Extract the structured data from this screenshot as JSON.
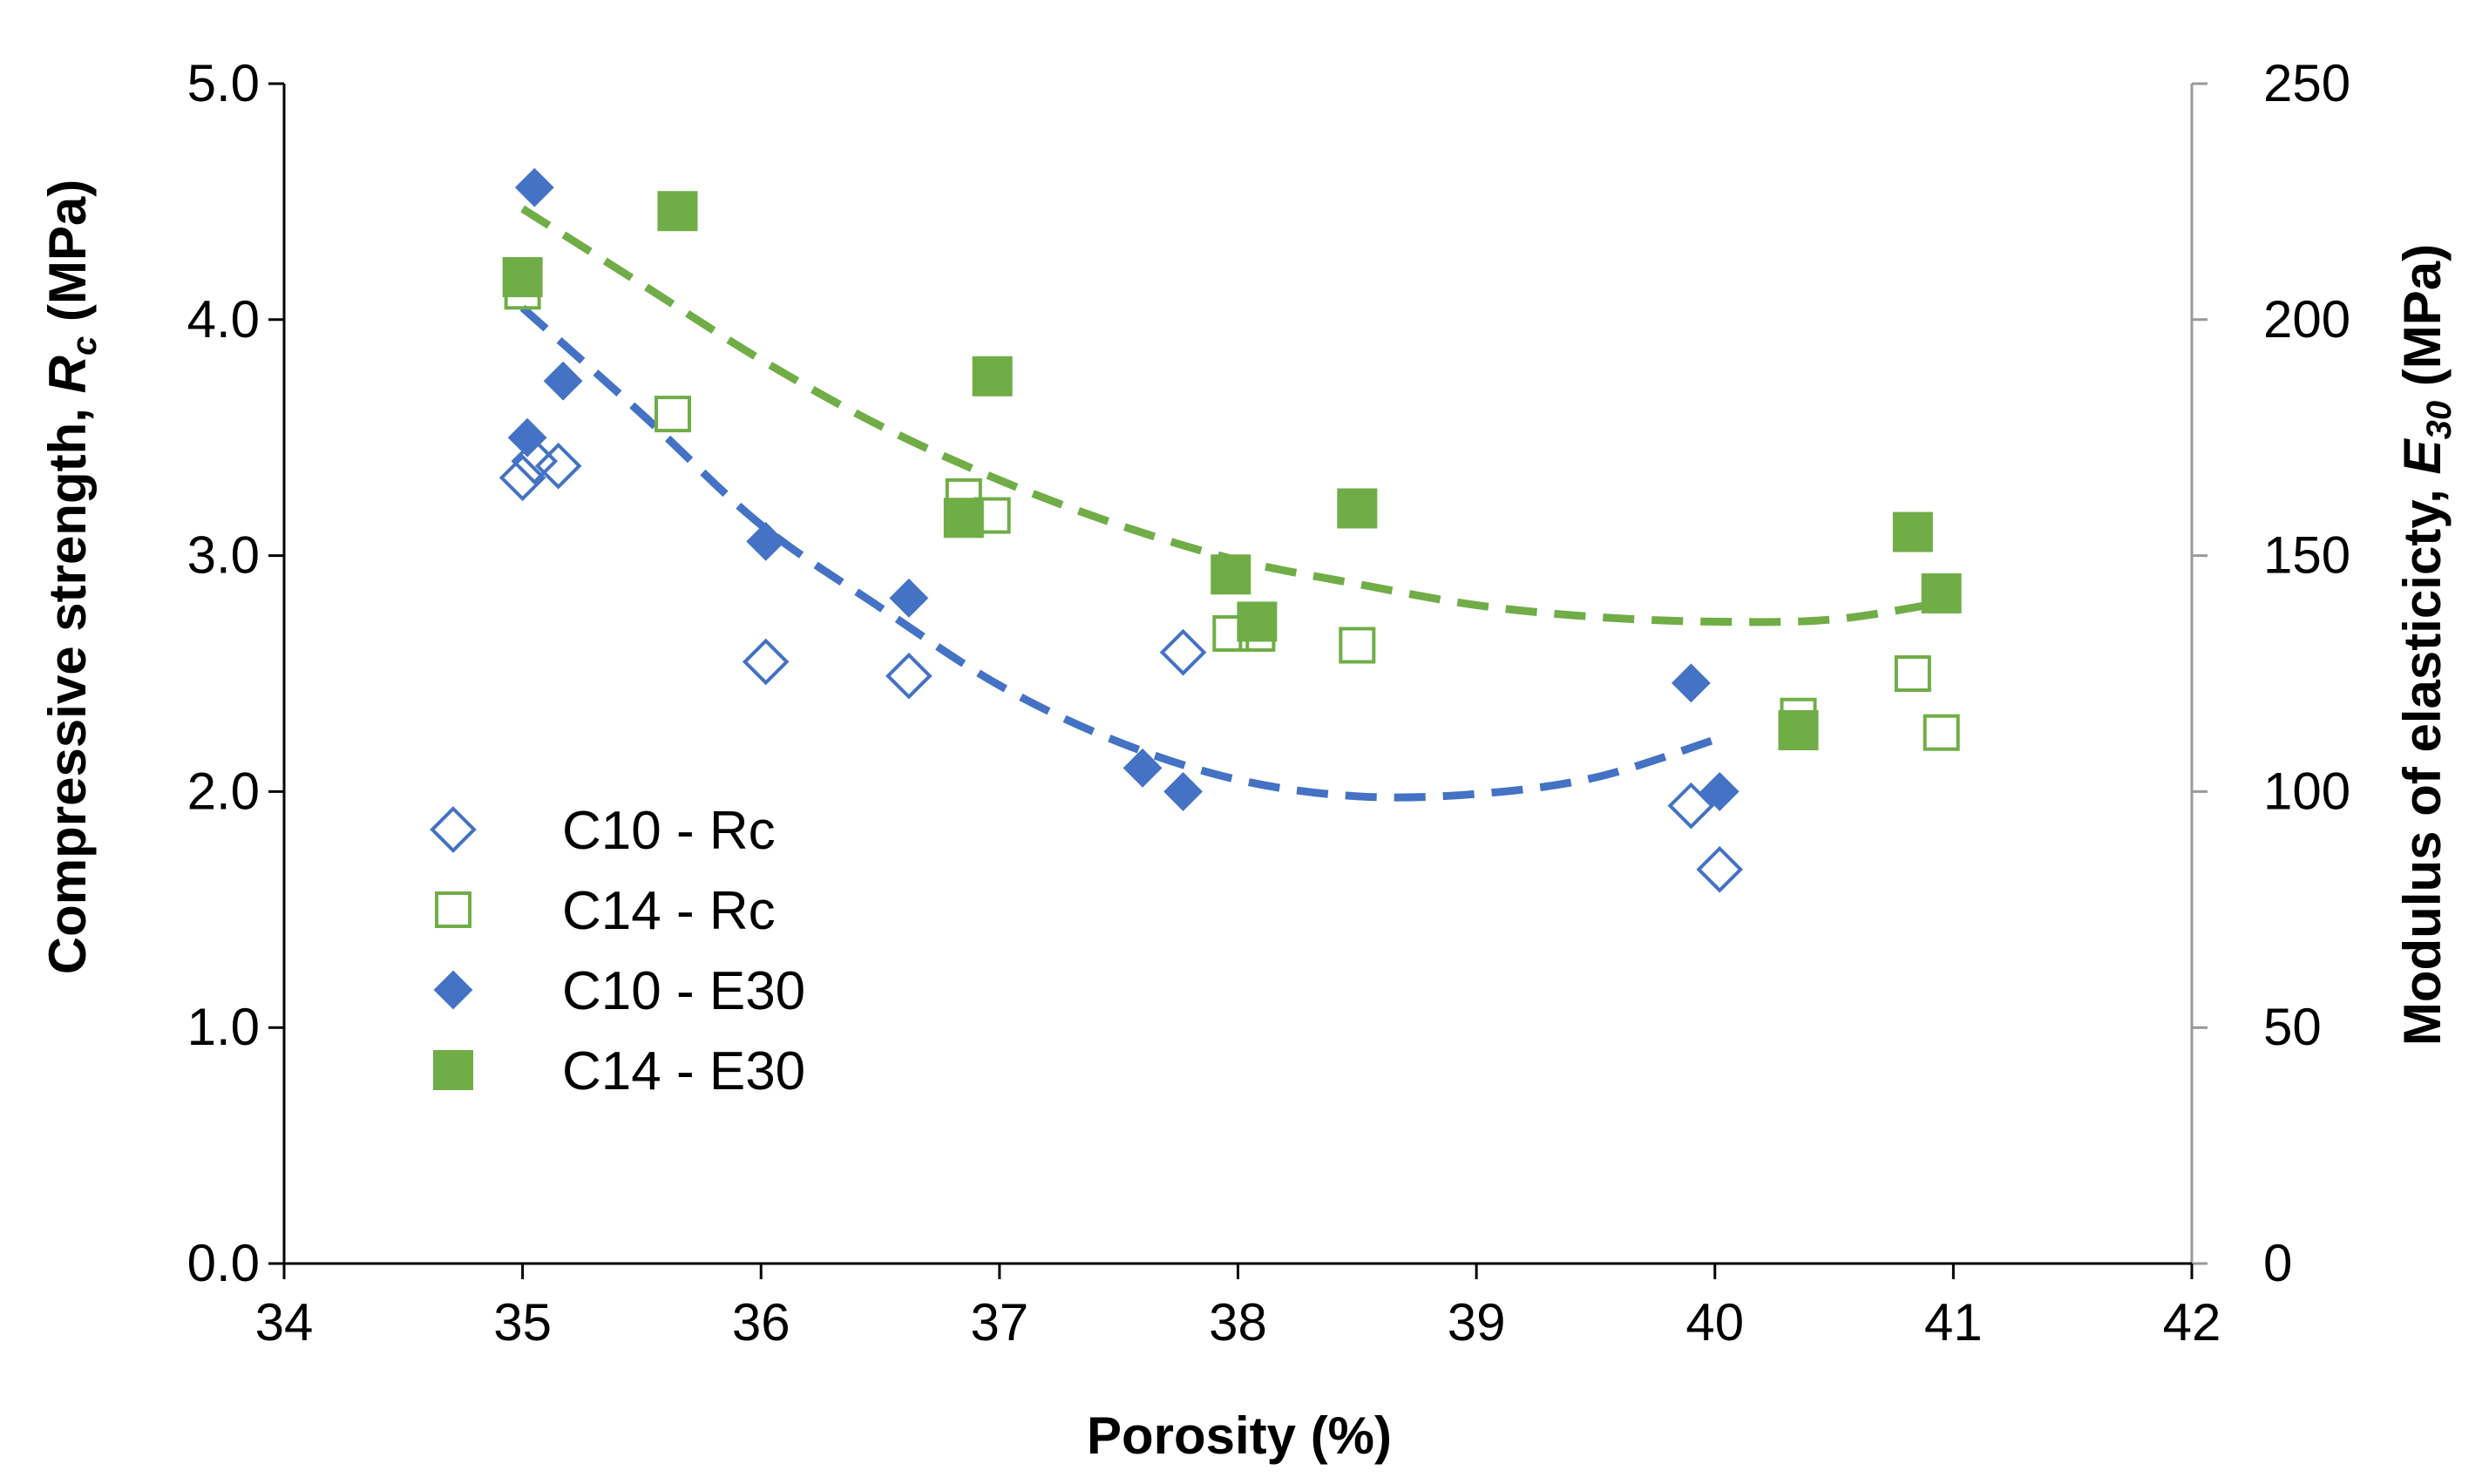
{
  "chart_data": {
    "type": "scatter",
    "xlabel": "Porosity (%)",
    "ylabel": {
      "main": "Compressive strength, ",
      "symbol": "R",
      "sub": "c",
      "unit": " (MPa)"
    },
    "y2label": {
      "main": "Modulus of elasticicty, ",
      "symbol": "E",
      "sub": "30",
      "unit": " (MPa)"
    },
    "xlim": [
      34,
      42
    ],
    "ylim": [
      0,
      5
    ],
    "y2lim": [
      0,
      250
    ],
    "x_ticks": [
      "34",
      "35",
      "36",
      "37",
      "38",
      "39",
      "40",
      "41",
      "42"
    ],
    "y_ticks": [
      "0.0",
      "1.0",
      "2.0",
      "3.0",
      "4.0",
      "5.0"
    ],
    "y2_ticks": [
      "0",
      "50",
      "100",
      "150",
      "200",
      "250"
    ],
    "colors": {
      "blue": "#4472C4",
      "green": "#70AD47"
    },
    "legend_position": "bottom-left",
    "series": [
      {
        "name": "C10 - Rc",
        "axis": "left",
        "marker": "diamond-open",
        "color": "#4472C4",
        "points": [
          [
            35.0,
            3.33
          ],
          [
            35.05,
            3.4
          ],
          [
            35.15,
            3.38
          ],
          [
            36.02,
            2.55
          ],
          [
            36.62,
            2.49
          ],
          [
            37.77,
            2.59
          ],
          [
            39.9,
            1.94
          ],
          [
            40.02,
            1.67
          ]
        ]
      },
      {
        "name": "C14 - Rc",
        "axis": "left",
        "marker": "square-open",
        "color": "#70AD47",
        "points": [
          [
            35.0,
            4.12
          ],
          [
            35.63,
            3.6
          ],
          [
            36.85,
            3.25
          ],
          [
            36.97,
            3.17
          ],
          [
            37.97,
            2.67
          ],
          [
            38.08,
            2.67
          ],
          [
            38.5,
            2.62
          ],
          [
            40.35,
            2.32
          ],
          [
            40.83,
            2.5
          ],
          [
            40.95,
            2.25
          ]
        ]
      },
      {
        "name": "C10 - E30",
        "axis": "right",
        "marker": "diamond-filled",
        "color": "#4472C4",
        "points": [
          [
            35.05,
            228
          ],
          [
            35.17,
            187
          ],
          [
            35.02,
            175
          ],
          [
            36.02,
            153
          ],
          [
            36.62,
            141
          ],
          [
            37.6,
            105
          ],
          [
            37.77,
            100
          ],
          [
            39.9,
            123
          ],
          [
            40.02,
            100
          ]
        ]
      },
      {
        "name": "C14 - E30",
        "axis": "right",
        "marker": "square-filled",
        "color": "#70AD47",
        "points": [
          [
            35.0,
            209
          ],
          [
            35.65,
            223
          ],
          [
            36.97,
            188
          ],
          [
            36.85,
            158
          ],
          [
            37.97,
            146
          ],
          [
            38.08,
            136
          ],
          [
            38.5,
            160
          ],
          [
            40.35,
            113
          ],
          [
            40.83,
            155
          ],
          [
            40.95,
            142
          ]
        ]
      }
    ],
    "trendlines": [
      {
        "name": "C10 trend",
        "axis": "left",
        "color": "#4472C4",
        "points": [
          [
            35.0,
            4.05
          ],
          [
            35.5,
            3.6
          ],
          [
            36.0,
            3.13
          ],
          [
            36.5,
            2.78
          ],
          [
            37.0,
            2.45
          ],
          [
            37.5,
            2.21
          ],
          [
            38.0,
            2.05
          ],
          [
            38.5,
            1.98
          ],
          [
            39.0,
            1.99
          ],
          [
            39.5,
            2.06
          ],
          [
            40.0,
            2.22
          ]
        ]
      },
      {
        "name": "C14 trend",
        "axis": "left",
        "color": "#70AD47",
        "points": [
          [
            35.0,
            4.47
          ],
          [
            35.5,
            4.15
          ],
          [
            36.0,
            3.83
          ],
          [
            36.5,
            3.55
          ],
          [
            37.0,
            3.32
          ],
          [
            37.5,
            3.13
          ],
          [
            38.0,
            2.98
          ],
          [
            38.5,
            2.88
          ],
          [
            39.0,
            2.79
          ],
          [
            39.5,
            2.74
          ],
          [
            40.0,
            2.72
          ],
          [
            40.5,
            2.73
          ],
          [
            41.0,
            2.81
          ]
        ]
      }
    ]
  }
}
